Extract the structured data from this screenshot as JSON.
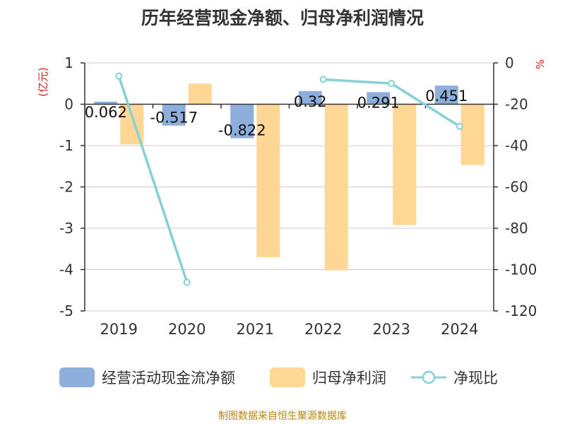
{
  "title": "历年经营现金净额、归母净利润情况",
  "source": "制图数据来自恒生聚源数据库",
  "colors": {
    "bar1": "#8eaedc",
    "bar2": "#ffd794",
    "line": "#84d1d7",
    "axis_unit": "#cc2222",
    "text": "#333333",
    "grid": "#cccccc"
  },
  "chart_data": {
    "type": "bar",
    "title": "历年经营现金净额、归母净利润情况",
    "categories": [
      "2019",
      "2020",
      "2021",
      "2022",
      "2023",
      "2024"
    ],
    "y_left": {
      "label": "(亿元)",
      "min": -5,
      "max": 1,
      "ticks": [
        1,
        0,
        -1,
        -2,
        -3,
        -4,
        -5
      ]
    },
    "y_right": {
      "label": "%",
      "min": -120,
      "max": 0,
      "ticks": [
        0,
        -20,
        -40,
        -60,
        -80,
        -100,
        -120
      ]
    },
    "grid": true,
    "legend_position": "bottom",
    "series": [
      {
        "name": "经营活动现金流净额",
        "type": "bar",
        "axis": "left",
        "values": [
          0.062,
          -0.517,
          -0.822,
          0.32,
          0.291,
          0.451
        ],
        "labels": [
          "0.062",
          "-0.517",
          "-0.822",
          "0.32",
          "0.291",
          "0.451"
        ]
      },
      {
        "name": "归母净利润",
        "type": "bar",
        "axis": "left",
        "values": [
          -0.97,
          0.5,
          -3.7,
          -4.02,
          -2.92,
          -1.47
        ]
      },
      {
        "name": "净现比",
        "type": "line",
        "axis": "right",
        "values": [
          -6.4,
          -106.2,
          null,
          -8.0,
          -9.96,
          -30.7
        ]
      }
    ]
  }
}
